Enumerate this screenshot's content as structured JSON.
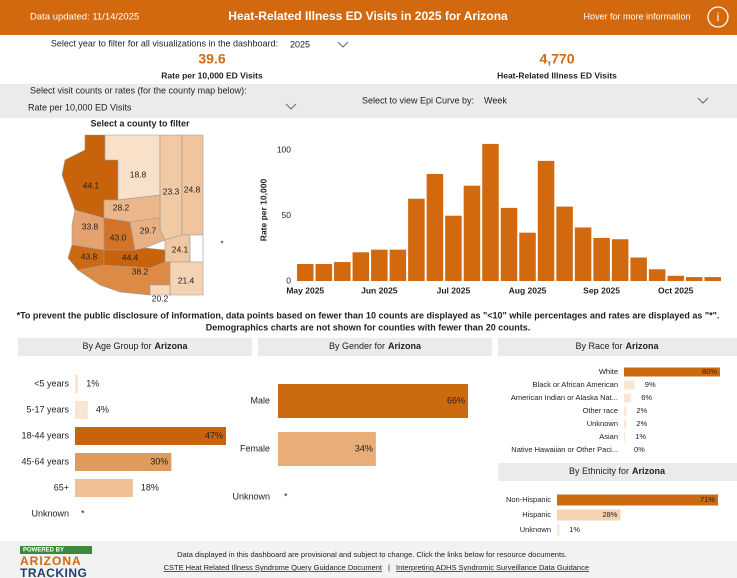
{
  "header": {
    "updated": "Data updated: 11/14/2025",
    "title": "Heat-Related Illness ED Visits in 2025 for Arizona",
    "hover": "Hover for more information",
    "info_icon": "i"
  },
  "filters": {
    "year_prompt": "Select year to filter for all visualizations in the dashboard:",
    "year": "2025",
    "measure_prompt": "Select visit counts or rates (for the county map below):",
    "measure": "Rate per 10,000 ED Visits",
    "epi_prompt": "Select to view Epi Curve by:",
    "epi_period": "Week"
  },
  "kpis": [
    {
      "value": "39.6",
      "label": "Rate per 10,000 ED Visits"
    },
    {
      "value": "4,770",
      "label": "Heat-Related Illness ED Visits"
    }
  ],
  "map": {
    "title": "Select a county to filter",
    "values": [
      44.1,
      18.8,
      23.3,
      24.8,
      28.2,
      33.8,
      43.0,
      29.7,
      24.1,
      null,
      43.8,
      44.4,
      38.2,
      21.4,
      20.2
    ],
    "value_labels": [
      "44.1",
      "18.8",
      "23.3",
      "24.8",
      "28.2",
      "33.8",
      "43.0",
      "29.7",
      "24.1",
      "*",
      "43.8",
      "44.4",
      "38.2",
      "21.4",
      "20.2"
    ],
    "colors": [
      "#c8630b",
      "#f8e0c9",
      "#f1c9a3",
      "#f0c49c",
      "#eab68a",
      "#e5a270",
      "#d3732a",
      "#e8b084",
      "#f0c7a0",
      "#ffffff",
      "#cc6a14",
      "#c8630b",
      "#dc8a45",
      "#f4d3b3",
      "#f6d9bd"
    ]
  },
  "notice": [
    "*To prevent the public disclosure of information, data points based on fewer than 10 counts are displayed as \"<10\" while percentages and rates are displayed as \"*\".",
    "Demographics charts are not shown for counties with fewer than 20 counts."
  ],
  "chart_data": [
    {
      "type": "bar",
      "ylabel": "Rate per 10,000",
      "color": "#d2690f",
      "categories": [
        "May 2025",
        null,
        null,
        null,
        "Jun 2025",
        null,
        null,
        null,
        "Jul 2025",
        null,
        null,
        null,
        "Aug 2025",
        null,
        null,
        null,
        "Sep 2025",
        null,
        null,
        null,
        "Oct 2025",
        null,
        null
      ],
      "values": [
        13,
        13,
        14.5,
        22,
        24,
        24,
        63,
        82,
        50,
        73,
        105,
        56,
        37,
        92,
        57,
        41,
        33,
        32,
        18,
        9,
        4,
        3,
        3
      ],
      "ylim": [
        0,
        108
      ],
      "yticks": [
        0,
        50,
        100
      ]
    },
    {
      "type": "bar",
      "orientation": "horizontal",
      "title": "By Age Group for",
      "region": "Arizona",
      "categories": [
        "<5 years",
        "5-17 years",
        "18-44 years",
        "45-64 years",
        "65+",
        "Unknown"
      ],
      "values": [
        1,
        4,
        47,
        30,
        18,
        null
      ],
      "value_labels": [
        "1%",
        "4%",
        "47%",
        "30%",
        "18%",
        "*"
      ],
      "colors": [
        "#fbe6d4",
        "#fbe6d4",
        "#c8630b",
        "#e09a5a",
        "#f0c096",
        null
      ]
    },
    {
      "type": "bar",
      "orientation": "horizontal",
      "title": "By Gender for",
      "region": "Arizona",
      "categories": [
        "Male",
        "Female",
        "Unknown"
      ],
      "values": [
        66,
        34,
        null
      ],
      "value_labels": [
        "66%",
        "34%",
        "*"
      ],
      "colors": [
        "#cc6a10",
        "#e9ae78",
        null
      ]
    },
    {
      "type": "bar",
      "orientation": "horizontal",
      "title": "By Race for",
      "region": "Arizona",
      "categories": [
        "White",
        "Black or African American",
        "American Indian or Alaska Nat...",
        "Other race",
        "Unknown",
        "Asian",
        "Native Hawaiian or Other Paci..."
      ],
      "values": [
        80,
        9,
        6,
        2,
        2,
        1,
        0
      ],
      "value_labels": [
        "80%",
        "9%",
        "6%",
        "2%",
        "2%",
        "1%",
        "0%"
      ],
      "colors": [
        "#cc6a10",
        "#fbe6d4",
        "#fbe6d4",
        "#fbe6d4",
        "#fbe6d4",
        "#fbe6d4",
        "#fbe6d4"
      ]
    },
    {
      "type": "bar",
      "orientation": "horizontal",
      "title": "By Ethnicity for",
      "region": "Arizona",
      "categories": [
        "Non-Hispanic",
        "Hispanic",
        "Unknown"
      ],
      "values": [
        71,
        28,
        1
      ],
      "value_labels": [
        "71%",
        "28%",
        "1%"
      ],
      "colors": [
        "#cc6a10",
        "#f5d2b0",
        "#fbe6d4"
      ]
    }
  ],
  "footer": {
    "logo_top": "POWERED BY",
    "logo_mid": "ARIZONA",
    "logo_bottom": "TRACKING",
    "note": "Data displayed in this dashboard are provisional and subject to change. Click the links below for resource documents.",
    "link1": "CSTE Heat Related Illness Syndrome Query Guidance Document",
    "separator": "|",
    "link2": "Interpreting ADHS Syndromic Surveillance Data Guidance"
  }
}
